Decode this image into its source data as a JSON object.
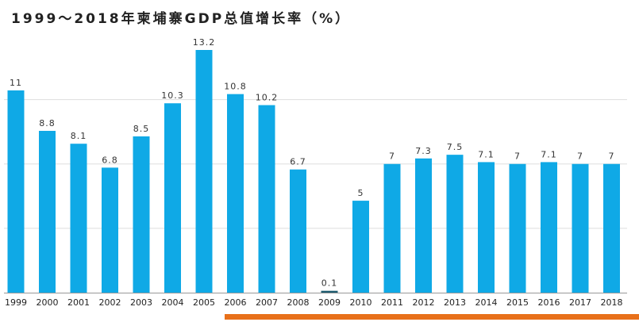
{
  "chart_data": {
    "type": "bar",
    "title": "1999～2018年柬埔寨GDP总值增长率（%）",
    "xlabel": "",
    "ylabel": "",
    "categories": [
      "1999",
      "2000",
      "2001",
      "2002",
      "2003",
      "2004",
      "2005",
      "2006",
      "2007",
      "2008",
      "2009",
      "2010",
      "2011",
      "2012",
      "2013",
      "2014",
      "2015",
      "2016",
      "2017",
      "2018"
    ],
    "values": [
      11,
      8.8,
      8.1,
      6.8,
      8.5,
      10.3,
      13.2,
      10.8,
      10.2,
      6.7,
      0.1,
      5,
      7,
      7.3,
      7.5,
      7.1,
      7,
      7.1,
      7,
      7
    ],
    "data_labels": [
      "11",
      "8.8",
      "8.1",
      "6.8",
      "8.5",
      "10.3",
      "13.2",
      "10.8",
      "10.2",
      "6.7",
      "0.1",
      "5",
      "7",
      "7.3",
      "7.5",
      "7.1",
      "7",
      "7.1",
      "7",
      "7"
    ],
    "ylim": [
      0,
      13.2
    ],
    "gridlines": [
      3.5,
      7,
      10.5
    ],
    "grid": true,
    "bar_color": "#0fa9e6",
    "special_bar_color": "#1d5a6e",
    "highlight_bar_color": "#e8701a",
    "highlight_range": [
      "2006",
      "2018"
    ]
  }
}
